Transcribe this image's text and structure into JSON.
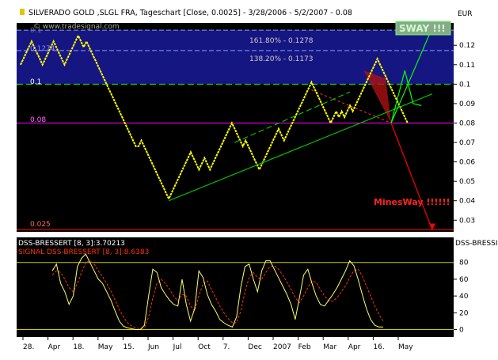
{
  "header": {
    "title": "SILVERADO GOLD    ,SLGL FRA, Tageschart [Close, 0.0025] - 3/28/2006 - 5/2/2007 - 0.08",
    "watermark": "© www.tradesignal.com",
    "currency": "EUR"
  },
  "colors": {
    "background": "#000000",
    "price_line": "#ffff00",
    "fib_band": "#1a1a9a",
    "support_magenta": "#ff00ff",
    "trend_green": "#00c000",
    "bright_green": "#00ff00",
    "mines_red": "#ff0000",
    "oscillator_line": "#ffff66",
    "signal_line": "#ff3300"
  },
  "annotations": {
    "fib_1618": "161.80% - 0.1278",
    "fib_1382": "138.20% - 0.1173",
    "level_0_1274": "0.1274",
    "level_0_1": "0.1",
    "level_0_08": "0.08",
    "level_0_025": "0.025",
    "level_0_1_faded": "0.1",
    "sway": "SWAY !!!",
    "mines": "MinesWay !!!!!!"
  },
  "chart_data": [
    {
      "type": "line",
      "name": "price",
      "ylim": [
        0.024,
        0.1315
      ],
      "yticks": [
        "0.12",
        "0.11",
        "0.1",
        "0.09",
        "0.08",
        "0.07",
        "0.06",
        "0.05",
        "0.04",
        "0.03"
      ],
      "x_labels": [
        "28.",
        "Apr",
        "18.",
        "May",
        "15.",
        "Jun",
        "Jul",
        "Oct",
        "7.",
        "Dec",
        "2007",
        "Feb",
        "Mar",
        "Apr",
        "16.",
        "May"
      ],
      "series": [
        {
          "name": "",
          "values": [
            0.11,
            0.113,
            0.116,
            0.119,
            0.122,
            0.119,
            0.116,
            0.113,
            0.11,
            0.113,
            0.116,
            0.119,
            0.122,
            0.119,
            0.116,
            0.113,
            0.11,
            0.113,
            0.116,
            0.119,
            0.122,
            0.125,
            0.122,
            0.119,
            0.122,
            0.119,
            0.116,
            0.113,
            0.11,
            0.107,
            0.104,
            0.101,
            0.098,
            0.095,
            0.092,
            0.089,
            0.086,
            0.083,
            0.08,
            0.077,
            0.074,
            0.071,
            0.068,
            0.068,
            0.071,
            0.068,
            0.065,
            0.062,
            0.059,
            0.056,
            0.053,
            0.05,
            0.047,
            0.044,
            0.041,
            0.044,
            0.047,
            0.05,
            0.053,
            0.056,
            0.059,
            0.062,
            0.065,
            0.062,
            0.059,
            0.056,
            0.059,
            0.062,
            0.059,
            0.056,
            0.059,
            0.062,
            0.065,
            0.068,
            0.071,
            0.074,
            0.077,
            0.08,
            0.077,
            0.074,
            0.071,
            0.068,
            0.071,
            0.068,
            0.065,
            0.062,
            0.059,
            0.056,
            0.059,
            0.062,
            0.065,
            0.068,
            0.071,
            0.074,
            0.077,
            0.074,
            0.071,
            0.074,
            0.077,
            0.08,
            0.083,
            0.086,
            0.089,
            0.092,
            0.095,
            0.098,
            0.101,
            0.098,
            0.095,
            0.092,
            0.089,
            0.086,
            0.083,
            0.08,
            0.083,
            0.086,
            0.083,
            0.086,
            0.083,
            0.086,
            0.089,
            0.086,
            0.089,
            0.092,
            0.095,
            0.098,
            0.101,
            0.104,
            0.107,
            0.11,
            0.113,
            0.11,
            0.107,
            0.104,
            0.101,
            0.098,
            0.095,
            0.092,
            0.089,
            0.086,
            0.083,
            0.08
          ]
        }
      ],
      "trendlines": [
        {
          "name": "support-trend",
          "from": [
            54,
            0.04
          ],
          "to": [
            150,
            0.095
          ],
          "color": "#00c000"
        },
        {
          "name": "mid-trend",
          "from": [
            78,
            0.07
          ],
          "to": [
            120,
            0.096
          ],
          "color": "#00c000",
          "dashed": true
        },
        {
          "name": "sway-up",
          "from": [
            135,
            0.08
          ],
          "to": [
            150,
            0.129
          ],
          "color": "#00ff00"
        },
        {
          "name": "mines-down",
          "from": [
            135,
            0.08
          ],
          "to": [
            150,
            0.025
          ],
          "color": "#ff0000"
        }
      ],
      "hlines": [
        {
          "name": "level-0-1",
          "value": 0.1,
          "color": "#00ff00",
          "dashed": true
        },
        {
          "name": "level-0-08",
          "value": 0.08,
          "color": "#ff00ff"
        },
        {
          "name": "level-0-025",
          "value": 0.025,
          "color": "#ff0000"
        }
      ],
      "band": {
        "from": 0.1,
        "to": 0.1278
      }
    },
    {
      "type": "line",
      "name": "dss-bressert",
      "title": "DSS-BRESSERT [8, 3]:3.70213",
      "signal_title": "SIGNAL DSS-BRESSERT [8, 3]:8.6383",
      "right_title": "DSS-BRESSI",
      "ylim": [
        -8,
        108
      ],
      "yticks": [
        "60",
        "40",
        "20",
        "0"
      ],
      "hlines": [
        80,
        0
      ],
      "series": [
        {
          "name": "DSS",
          "values": [
            70,
            78,
            55,
            45,
            30,
            40,
            75,
            85,
            90,
            80,
            70,
            60,
            55,
            45,
            35,
            22,
            10,
            4,
            2,
            1,
            0,
            0,
            5,
            40,
            72,
            68,
            50,
            42,
            35,
            30,
            28,
            60,
            30,
            10,
            25,
            70,
            62,
            42,
            30,
            22,
            12,
            8,
            5,
            3,
            15,
            50,
            75,
            78,
            60,
            45,
            70,
            82,
            82,
            72,
            62,
            52,
            42,
            30,
            12,
            38,
            65,
            72,
            55,
            40,
            30,
            28,
            35,
            42,
            50,
            60,
            70,
            82,
            76,
            60,
            42,
            25,
            12,
            5,
            3,
            3
          ]
        },
        {
          "name": "Signal",
          "values": [
            65,
            70,
            68,
            60,
            50,
            45,
            55,
            68,
            80,
            82,
            78,
            70,
            63,
            55,
            46,
            35,
            24,
            15,
            8,
            4,
            2,
            1,
            2,
            15,
            38,
            55,
            60,
            55,
            48,
            40,
            34,
            42,
            40,
            28,
            22,
            40,
            55,
            58,
            48,
            38,
            28,
            20,
            13,
            8,
            8,
            22,
            45,
            62,
            68,
            62,
            60,
            68,
            75,
            76,
            72,
            65,
            57,
            48,
            38,
            32,
            40,
            50,
            58,
            56,
            48,
            40,
            34,
            34,
            38,
            45,
            52,
            62,
            70,
            72,
            64,
            52,
            40,
            28,
            18,
            10
          ]
        }
      ]
    }
  ]
}
